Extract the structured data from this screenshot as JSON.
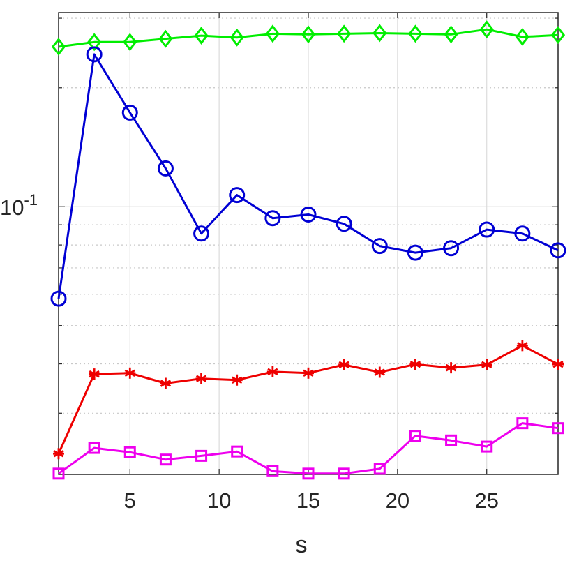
{
  "chart_data": {
    "type": "line",
    "title": "",
    "xlabel": "s",
    "ylabel": "",
    "xlim": [
      1,
      29
    ],
    "ylim": [
      0.021,
      0.31
    ],
    "yscale": "log",
    "grid": true,
    "x_ticks": [
      5,
      10,
      15,
      20,
      25
    ],
    "x_tick_labels": [
      "5",
      "10",
      "15",
      "20",
      "25"
    ],
    "y_ticks": [
      0.1
    ],
    "y_tick_labels": [
      {
        "base": "10",
        "exp": "-1"
      }
    ],
    "x": [
      1,
      3,
      5,
      7,
      9,
      11,
      13,
      15,
      17,
      19,
      21,
      23,
      25,
      27,
      29
    ],
    "series": [
      {
        "marker": "diamond",
        "color": "#00ee00",
        "values": [
          0.254,
          0.261,
          0.261,
          0.266,
          0.271,
          0.268,
          0.274,
          0.273,
          0.274,
          0.275,
          0.274,
          0.273,
          0.281,
          0.269,
          0.272
        ]
      },
      {
        "marker": "circle",
        "color": "#0000d4",
        "values": [
          0.0585,
          0.243,
          0.173,
          0.125,
          0.0855,
          0.107,
          0.0935,
          0.0955,
          0.0905,
          0.0795,
          0.0765,
          0.0785,
          0.0875,
          0.0855,
          0.0775
        ]
      },
      {
        "marker": "asterisk",
        "color": "#ee0000",
        "values": [
          0.0237,
          0.0377,
          0.0379,
          0.0357,
          0.0367,
          0.0364,
          0.0382,
          0.0379,
          0.0398,
          0.0381,
          0.0399,
          0.0391,
          0.0398,
          0.0445,
          0.0399
        ]
      },
      {
        "marker": "square",
        "color": "#ee00ee",
        "values": [
          0.0211,
          0.0245,
          0.0239,
          0.0229,
          0.0234,
          0.024,
          0.0214,
          0.0211,
          0.0211,
          0.0217,
          0.0263,
          0.0256,
          0.0247,
          0.0283,
          0.0275
        ]
      }
    ]
  }
}
